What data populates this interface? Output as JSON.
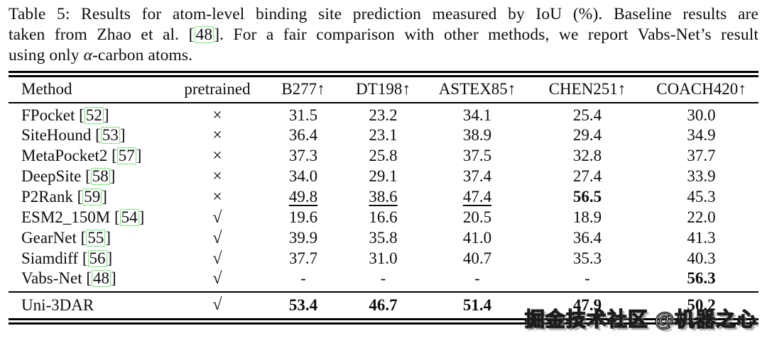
{
  "caption": {
    "line1": "Table 5: Results for atom-level binding site prediction measured by IoU (%). Baseline results are",
    "line2_pre": "taken from Zhao et al. [",
    "line2_cite": "48",
    "line2_post": "]. For a fair comparison with other methods, we report Vabs-Net’s result",
    "line3_pre": "using only ",
    "line3_alpha": "α",
    "line3_post": "-carbon atoms."
  },
  "table": {
    "headers": [
      "Method",
      "pretrained",
      "B277↑",
      "DT198↑",
      "ASTEX85↑",
      "CHEN251↑",
      "COACH420↑"
    ],
    "rows": [
      {
        "method": "FPocket",
        "cite": "52",
        "pretrained": "×",
        "b277": "31.5",
        "dt198": "23.2",
        "astex85": "34.1",
        "chen251": "25.4",
        "coach420": "30.0"
      },
      {
        "method": "SiteHound",
        "cite": "53",
        "pretrained": "×",
        "b277": "36.4",
        "dt198": "23.1",
        "astex85": "38.9",
        "chen251": "29.4",
        "coach420": "34.9"
      },
      {
        "method": "MetaPocket2",
        "cite": "57",
        "pretrained": "×",
        "b277": "37.3",
        "dt198": "25.8",
        "astex85": "37.5",
        "chen251": "32.8",
        "coach420": "37.7"
      },
      {
        "method": "DeepSite",
        "cite": "58",
        "pretrained": "×",
        "b277": "34.0",
        "dt198": "29.1",
        "astex85": "37.4",
        "chen251": "27.4",
        "coach420": "33.9"
      },
      {
        "method": "P2Rank",
        "cite": "59",
        "pretrained": "×",
        "b277": "49.8",
        "dt198": "38.6",
        "astex85": "47.4",
        "chen251": "56.5",
        "coach420": "45.3"
      },
      {
        "method": "ESM2_150M",
        "cite": "54",
        "pretrained": "√",
        "b277": "19.6",
        "dt198": "16.6",
        "astex85": "20.5",
        "chen251": "18.9",
        "coach420": "22.0"
      },
      {
        "method": "GearNet",
        "cite": "55",
        "pretrained": "√",
        "b277": "39.9",
        "dt198": "35.8",
        "astex85": "41.0",
        "chen251": "36.4",
        "coach420": "41.3"
      },
      {
        "method": "Siamdiff",
        "cite": "56",
        "pretrained": "√",
        "b277": "37.7",
        "dt198": "31.0",
        "astex85": "40.7",
        "chen251": "35.3",
        "coach420": "40.3"
      },
      {
        "method": "Vabs-Net",
        "cite": "48",
        "pretrained": "√",
        "b277": "-",
        "dt198": "-",
        "astex85": "-",
        "chen251": "-",
        "coach420": "56.3"
      }
    ],
    "final_row": {
      "method": "Uni-3DAR",
      "pretrained": "√",
      "b277": "53.4",
      "dt198": "46.7",
      "astex85": "51.4",
      "chen251": "47.9",
      "coach420": "50.2"
    }
  },
  "watermark": "掘金技术社区 @机器之心",
  "colors": {
    "citation_box": "#7ce87c",
    "text": "#0d0d0d"
  }
}
